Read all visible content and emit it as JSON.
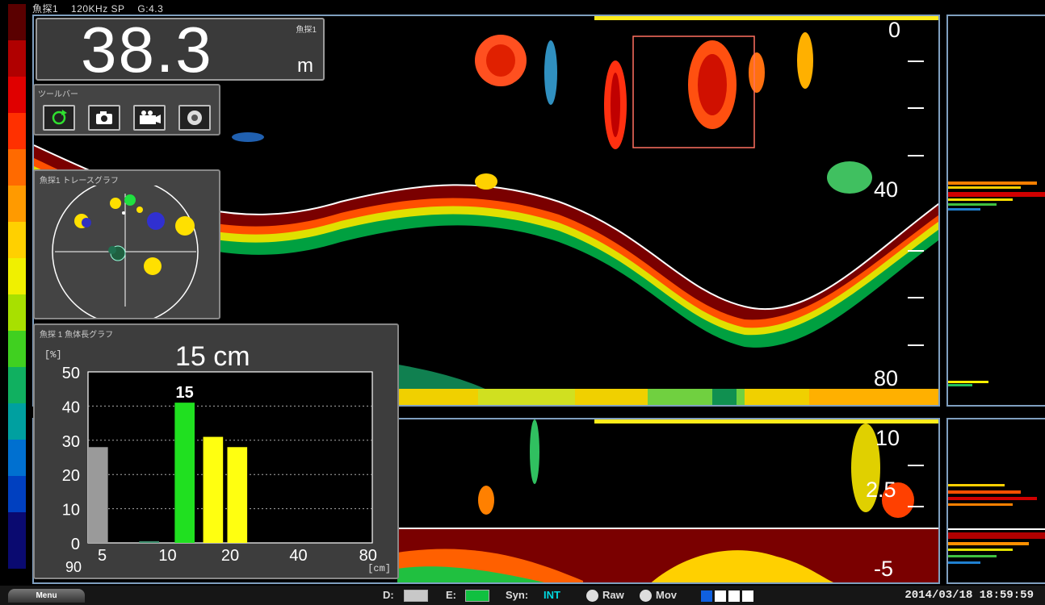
{
  "status_bar": {
    "source": "魚探1",
    "frequency": "120KHz SP",
    "gain": "G:4.3"
  },
  "depth_readout": {
    "value": "38.3",
    "unit": "m",
    "source": "魚探1"
  },
  "toolbar": {
    "title": "ツールバー",
    "buttons": [
      {
        "name": "refresh-icon"
      },
      {
        "name": "camera-icon"
      },
      {
        "name": "video-camera-icon"
      },
      {
        "name": "record-icon"
      }
    ]
  },
  "trace_graph": {
    "title": "魚探1 トレースグラフ"
  },
  "upper_scale": {
    "labels": [
      "0",
      "40",
      "80"
    ]
  },
  "lower_scale": {
    "labels": [
      "10",
      "2.5",
      "-5"
    ]
  },
  "length_graph": {
    "title": "魚探 1 魚体長グラフ",
    "headline": "15 cm",
    "y_unit": "[%]",
    "x_unit": "[cm]",
    "extra_label": "90",
    "peak_label": "15"
  },
  "chart_data": {
    "type": "bar",
    "x_ticks": [
      "5",
      "10",
      "20",
      "40",
      "80"
    ],
    "y_ticks": [
      "50",
      "40",
      "30",
      "20",
      "10",
      "0"
    ],
    "ylim": [
      0,
      50
    ],
    "bars": [
      {
        "x": "5",
        "value": 28,
        "color": "#9a9a9a"
      },
      {
        "x": "10",
        "value": 0.5,
        "color": "#3c8c6c"
      },
      {
        "x": "15",
        "value": 41,
        "color": "#20e020"
      },
      {
        "x": "20",
        "value": 31,
        "color": "#ffff10"
      },
      {
        "x": "25",
        "value": 28,
        "color": "#ffff10"
      }
    ]
  },
  "bottom_bar": {
    "menu": "Menu",
    "d_label": "D:",
    "e_label": "E:",
    "syn_label": "Syn:",
    "syn_value": "INT",
    "raw_label": "Raw",
    "mov_label": "Mov",
    "datetime": "2014/03/18 18:59:59",
    "d_color": "#c8c8c8",
    "e_color": "#10c040"
  }
}
